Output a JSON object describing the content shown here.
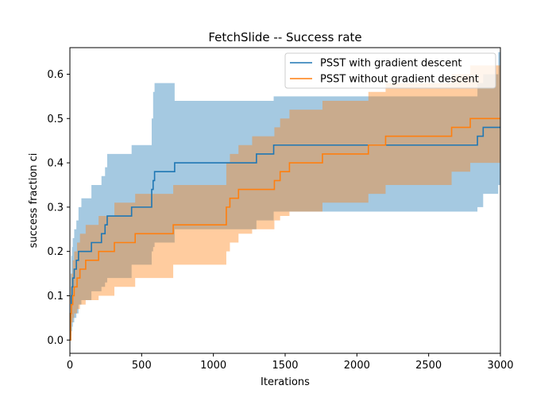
{
  "chart_data": {
    "type": "line",
    "title": "FetchSlide -- Success rate",
    "xlabel": "Iterations",
    "ylabel": "success fraction ci",
    "xlim": [
      0,
      3000
    ],
    "ylim": [
      -0.03,
      0.66
    ],
    "xticks": [
      0,
      500,
      1000,
      1500,
      2000,
      2500,
      3000
    ],
    "yticks": [
      0.0,
      0.1,
      0.2,
      0.3,
      0.4,
      0.5,
      0.6
    ],
    "grid": false,
    "legend_position": "top-right",
    "series": [
      {
        "name": "PSST with gradient descent",
        "color": "#1f77b4",
        "band_color": "#1f77b4",
        "step": true,
        "x": [
          0,
          5,
          10,
          15,
          20,
          30,
          45,
          60,
          80,
          150,
          220,
          245,
          260,
          430,
          570,
          580,
          590,
          730,
          1300,
          1420,
          2840,
          2880,
          2985,
          3000
        ],
        "y": [
          0.0,
          0.06,
          0.1,
          0.12,
          0.14,
          0.16,
          0.18,
          0.2,
          0.2,
          0.22,
          0.24,
          0.26,
          0.28,
          0.3,
          0.34,
          0.36,
          0.38,
          0.4,
          0.42,
          0.44,
          0.46,
          0.48,
          0.48,
          0.48
        ],
        "upper": [
          0.0,
          0.15,
          0.19,
          0.21,
          0.23,
          0.25,
          0.27,
          0.3,
          0.32,
          0.35,
          0.37,
          0.39,
          0.42,
          0.44,
          0.5,
          0.56,
          0.58,
          0.54,
          0.54,
          0.55,
          0.58,
          0.6,
          0.65,
          0.65
        ],
        "lower": [
          0.0,
          0.01,
          0.02,
          0.03,
          0.04,
          0.05,
          0.06,
          0.08,
          0.09,
          0.11,
          0.12,
          0.13,
          0.14,
          0.17,
          0.2,
          0.21,
          0.22,
          0.25,
          0.27,
          0.29,
          0.3,
          0.33,
          0.35,
          0.35
        ]
      },
      {
        "name": "PSST without gradient descent",
        "color": "#ff7f0e",
        "band_color": "#ff7f0e",
        "step": true,
        "x": [
          0,
          5,
          10,
          20,
          30,
          50,
          70,
          110,
          200,
          310,
          455,
          720,
          1090,
          1115,
          1175,
          1270,
          1425,
          1465,
          1530,
          1760,
          2080,
          2200,
          2660,
          2790,
          3000
        ],
        "y": [
          0.0,
          0.06,
          0.08,
          0.1,
          0.12,
          0.14,
          0.16,
          0.18,
          0.2,
          0.22,
          0.24,
          0.26,
          0.3,
          0.32,
          0.34,
          0.34,
          0.36,
          0.38,
          0.4,
          0.42,
          0.44,
          0.46,
          0.48,
          0.5,
          0.5
        ],
        "upper": [
          0.0,
          0.12,
          0.15,
          0.18,
          0.2,
          0.22,
          0.24,
          0.26,
          0.28,
          0.31,
          0.33,
          0.35,
          0.4,
          0.42,
          0.44,
          0.46,
          0.48,
          0.5,
          0.52,
          0.54,
          0.56,
          0.58,
          0.6,
          0.62,
          0.64
        ],
        "lower": [
          0.0,
          0.03,
          0.04,
          0.05,
          0.06,
          0.07,
          0.08,
          0.09,
          0.1,
          0.12,
          0.14,
          0.17,
          0.2,
          0.22,
          0.24,
          0.25,
          0.27,
          0.28,
          0.29,
          0.31,
          0.33,
          0.35,
          0.38,
          0.4,
          0.42
        ]
      }
    ]
  }
}
